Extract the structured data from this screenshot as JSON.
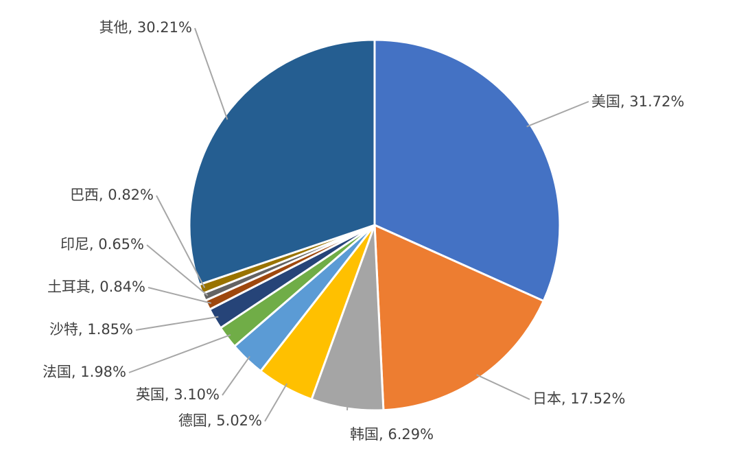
{
  "chart_data": {
    "type": "pie",
    "title": "",
    "slices": [
      {
        "name": "美国",
        "value": 31.72,
        "label": "美国, 31.72%",
        "color": "#4472C4"
      },
      {
        "name": "日本",
        "value": 17.52,
        "label": "日本, 17.52%",
        "color": "#ED7D31"
      },
      {
        "name": "韩国",
        "value": 6.29,
        "label": "韩国, 6.29%",
        "color": "#A5A5A5"
      },
      {
        "name": "德国",
        "value": 5.02,
        "label": "德国, 5.02%",
        "color": "#FFC000"
      },
      {
        "name": "英国",
        "value": 3.1,
        "label": "英国, 3.10%",
        "color": "#5B9BD5"
      },
      {
        "name": "法国",
        "value": 1.98,
        "label": "法国, 1.98%",
        "color": "#70AD47"
      },
      {
        "name": "沙特",
        "value": 1.85,
        "label": "沙特, 1.85%",
        "color": "#264478"
      },
      {
        "name": "土耳其",
        "value": 0.84,
        "label": "土耳其, 0.84%",
        "color": "#9E480E"
      },
      {
        "name": "印尼",
        "value": 0.65,
        "label": "印尼, 0.65%",
        "color": "#636363"
      },
      {
        "name": "巴西",
        "value": 0.82,
        "label": "巴西, 0.82%",
        "color": "#997300"
      },
      {
        "name": "其他",
        "value": 30.21,
        "label": "其他, 30.21%",
        "color": "#255E91"
      }
    ]
  }
}
